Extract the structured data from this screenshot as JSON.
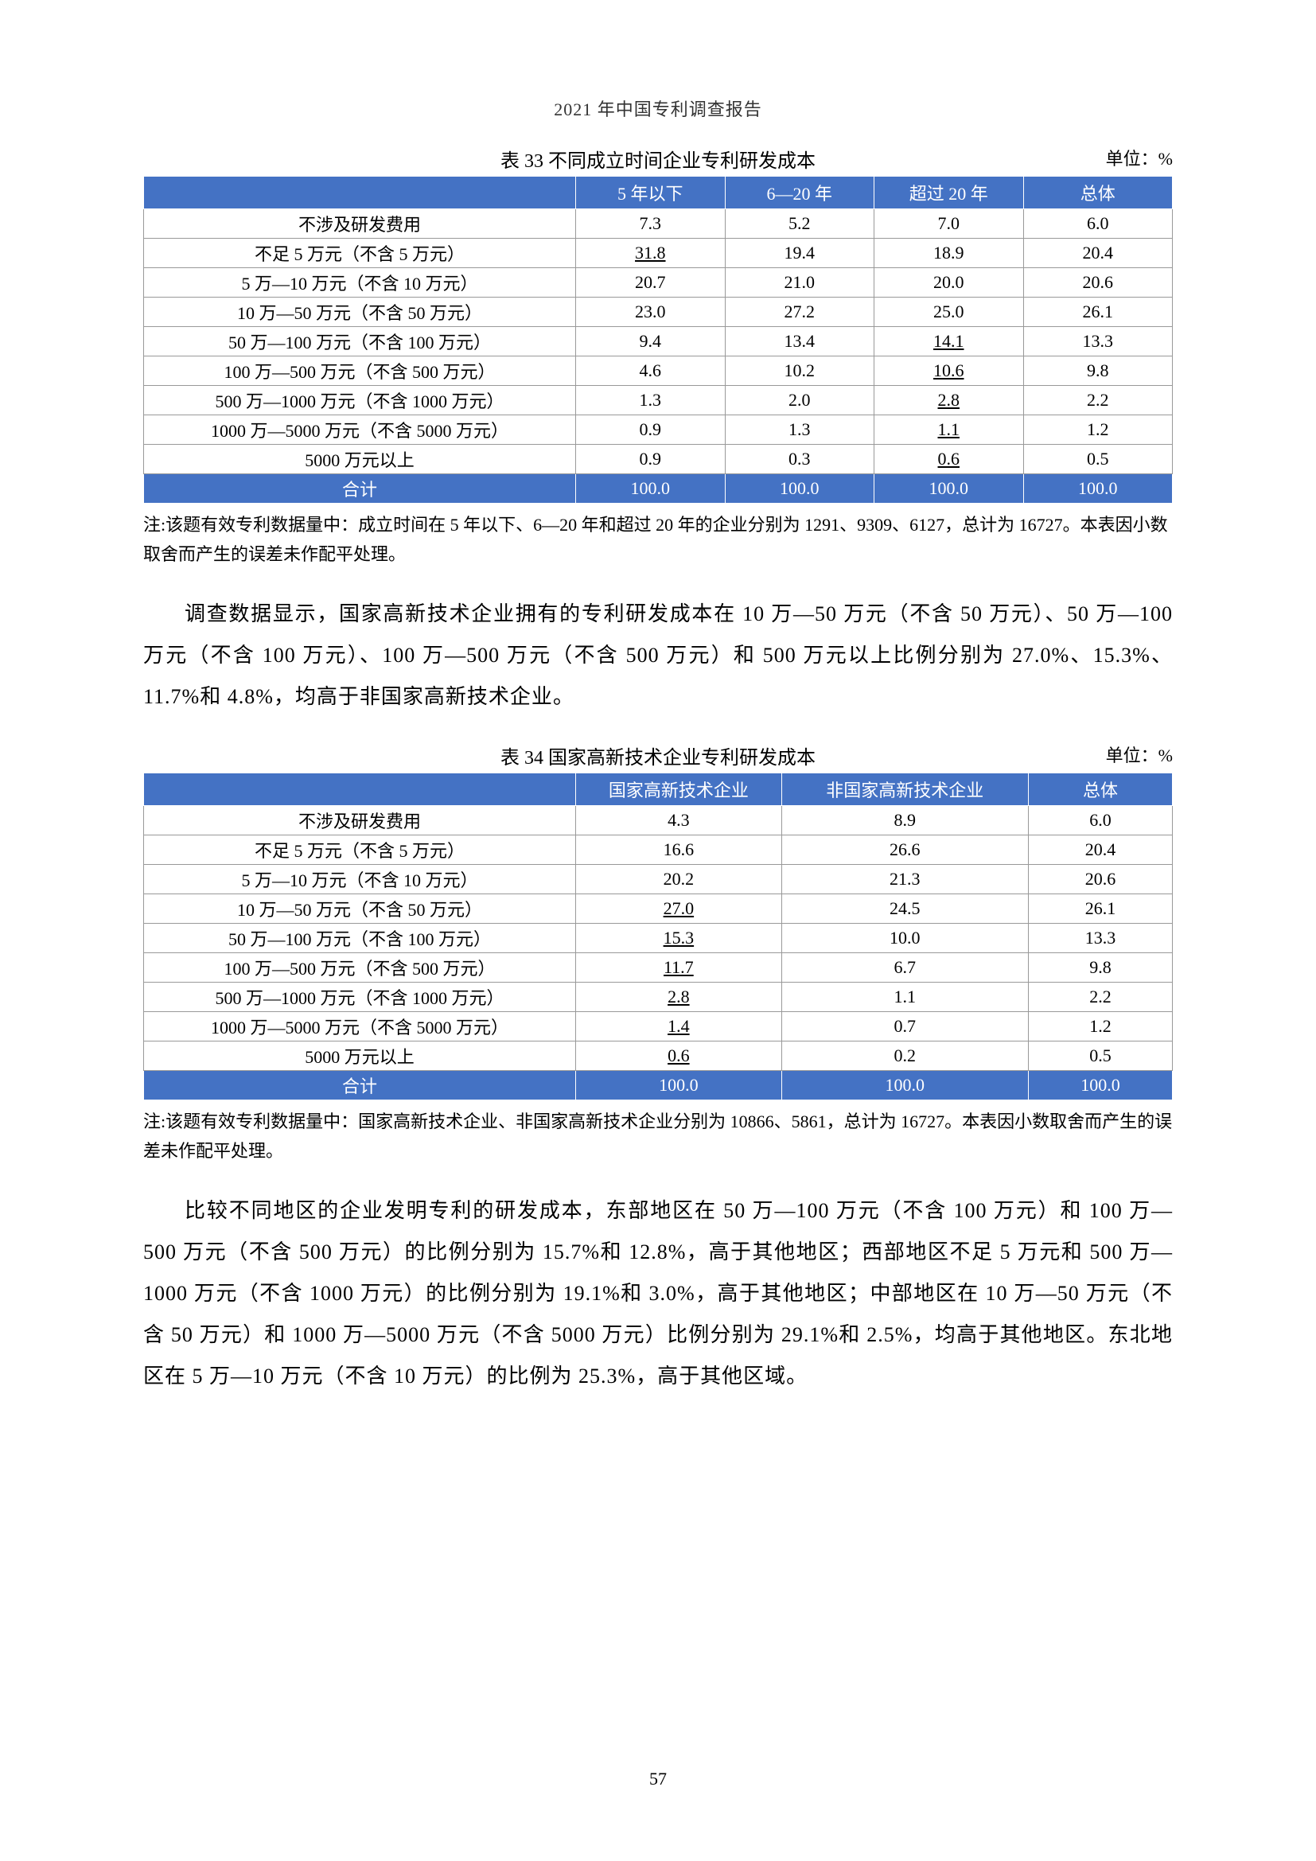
{
  "docHeader": "2021 年中国专利调查报告",
  "pageNumber": "57",
  "table33": {
    "title": "表 33  不同成立时间企业专利研发成本",
    "unit": "单位：%",
    "headers": [
      "",
      "5 年以下",
      "6—20 年",
      "超过 20 年",
      "总体"
    ],
    "colWidths": [
      "42%",
      "14.5%",
      "14.5%",
      "14.5%",
      "14.5%"
    ],
    "rows": [
      {
        "label": "不涉及研发费用",
        "cells": [
          {
            "v": "7.3"
          },
          {
            "v": "5.2"
          },
          {
            "v": "7.0"
          },
          {
            "v": "6.0"
          }
        ]
      },
      {
        "label": "不足 5 万元（不含 5 万元）",
        "cells": [
          {
            "v": "31.8",
            "u": true
          },
          {
            "v": "19.4"
          },
          {
            "v": "18.9"
          },
          {
            "v": "20.4"
          }
        ]
      },
      {
        "label": "5 万—10 万元（不含 10 万元）",
        "cells": [
          {
            "v": "20.7"
          },
          {
            "v": "21.0"
          },
          {
            "v": "20.0"
          },
          {
            "v": "20.6"
          }
        ]
      },
      {
        "label": "10 万—50 万元（不含 50 万元）",
        "cells": [
          {
            "v": "23.0"
          },
          {
            "v": "27.2"
          },
          {
            "v": "25.0"
          },
          {
            "v": "26.1"
          }
        ]
      },
      {
        "label": "50 万—100 万元（不含 100 万元）",
        "cells": [
          {
            "v": "9.4"
          },
          {
            "v": "13.4"
          },
          {
            "v": "14.1",
            "u": true
          },
          {
            "v": "13.3"
          }
        ]
      },
      {
        "label": "100 万—500 万元（不含 500 万元）",
        "cells": [
          {
            "v": "4.6"
          },
          {
            "v": "10.2"
          },
          {
            "v": "10.6",
            "u": true
          },
          {
            "v": "9.8"
          }
        ]
      },
      {
        "label": "500 万—1000 万元（不含 1000 万元）",
        "cells": [
          {
            "v": "1.3"
          },
          {
            "v": "2.0"
          },
          {
            "v": "2.8",
            "u": true
          },
          {
            "v": "2.2"
          }
        ]
      },
      {
        "label": "1000 万—5000 万元（不含 5000 万元）",
        "cells": [
          {
            "v": "0.9"
          },
          {
            "v": "1.3"
          },
          {
            "v": "1.1",
            "u": true
          },
          {
            "v": "1.2"
          }
        ]
      },
      {
        "label": "5000 万元以上",
        "cells": [
          {
            "v": "0.9"
          },
          {
            "v": "0.3"
          },
          {
            "v": "0.6",
            "u": true
          },
          {
            "v": "0.5"
          }
        ]
      }
    ],
    "totalRow": {
      "label": "合计",
      "cells": [
        {
          "v": "100.0"
        },
        {
          "v": "100.0"
        },
        {
          "v": "100.0"
        },
        {
          "v": "100.0"
        }
      ]
    },
    "note": "注:该题有效专利数据量中：成立时间在 5 年以下、6—20 年和超过 20 年的企业分别为 1291、9309、6127，总计为 16727。本表因小数取舍而产生的误差未作配平处理。"
  },
  "para1": "调查数据显示，国家高新技术企业拥有的专利研发成本在 10 万—50 万元（不含 50 万元）、50 万—100 万元（不含 100 万元）、100 万—500 万元（不含 500 万元）和 500 万元以上比例分别为 27.0%、15.3%、11.7%和 4.8%，均高于非国家高新技术企业。",
  "table34": {
    "title": "表 34  国家高新技术企业专利研发成本",
    "unit": "单位：%",
    "headers": [
      "",
      "国家高新技术企业",
      "非国家高新技术企业",
      "总体"
    ],
    "colWidths": [
      "42%",
      "20%",
      "24%",
      "14%"
    ],
    "rows": [
      {
        "label": "不涉及研发费用",
        "cells": [
          {
            "v": "4.3"
          },
          {
            "v": "8.9"
          },
          {
            "v": "6.0"
          }
        ]
      },
      {
        "label": "不足 5 万元（不含 5 万元）",
        "cells": [
          {
            "v": "16.6"
          },
          {
            "v": "26.6"
          },
          {
            "v": "20.4"
          }
        ]
      },
      {
        "label": "5 万—10 万元（不含 10 万元）",
        "cells": [
          {
            "v": "20.2"
          },
          {
            "v": "21.3"
          },
          {
            "v": "20.6"
          }
        ]
      },
      {
        "label": "10 万—50 万元（不含 50 万元）",
        "cells": [
          {
            "v": "27.0",
            "u": true
          },
          {
            "v": "24.5"
          },
          {
            "v": "26.1"
          }
        ]
      },
      {
        "label": "50 万—100 万元（不含 100 万元）",
        "cells": [
          {
            "v": "15.3",
            "u": true
          },
          {
            "v": "10.0"
          },
          {
            "v": "13.3"
          }
        ]
      },
      {
        "label": "100 万—500 万元（不含 500 万元）",
        "cells": [
          {
            "v": "11.7",
            "u": true
          },
          {
            "v": "6.7"
          },
          {
            "v": "9.8"
          }
        ]
      },
      {
        "label": "500 万—1000 万元（不含 1000 万元）",
        "cells": [
          {
            "v": "2.8",
            "u": true
          },
          {
            "v": "1.1"
          },
          {
            "v": "2.2"
          }
        ]
      },
      {
        "label": "1000 万—5000 万元（不含 5000 万元）",
        "cells": [
          {
            "v": "1.4",
            "u": true
          },
          {
            "v": "0.7"
          },
          {
            "v": "1.2"
          }
        ]
      },
      {
        "label": "5000 万元以上",
        "cells": [
          {
            "v": "0.6",
            "u": true
          },
          {
            "v": "0.2"
          },
          {
            "v": "0.5"
          }
        ]
      }
    ],
    "totalRow": {
      "label": "合计",
      "cells": [
        {
          "v": "100.0"
        },
        {
          "v": "100.0"
        },
        {
          "v": "100.0"
        }
      ]
    },
    "note": "注:该题有效专利数据量中：国家高新技术企业、非国家高新技术企业分别为 10866、5861，总计为 16727。本表因小数取舍而产生的误差未作配平处理。"
  },
  "para2": "比较不同地区的企业发明专利的研发成本，东部地区在 50 万—100 万元（不含 100 万元）和 100 万—500 万元（不含 500 万元）的比例分别为 15.7%和 12.8%，高于其他地区；西部地区不足 5 万元和 500 万—1000 万元（不含 1000 万元）的比例分别为 19.1%和 3.0%，高于其他地区；中部地区在 10 万—50 万元（不含 50 万元）和 1000 万—5000 万元（不含 5000 万元）比例分别为 29.1%和 2.5%，均高于其他地区。东北地区在 5 万—10 万元（不含 10 万元）的比例为 25.3%，高于其他区域。"
}
